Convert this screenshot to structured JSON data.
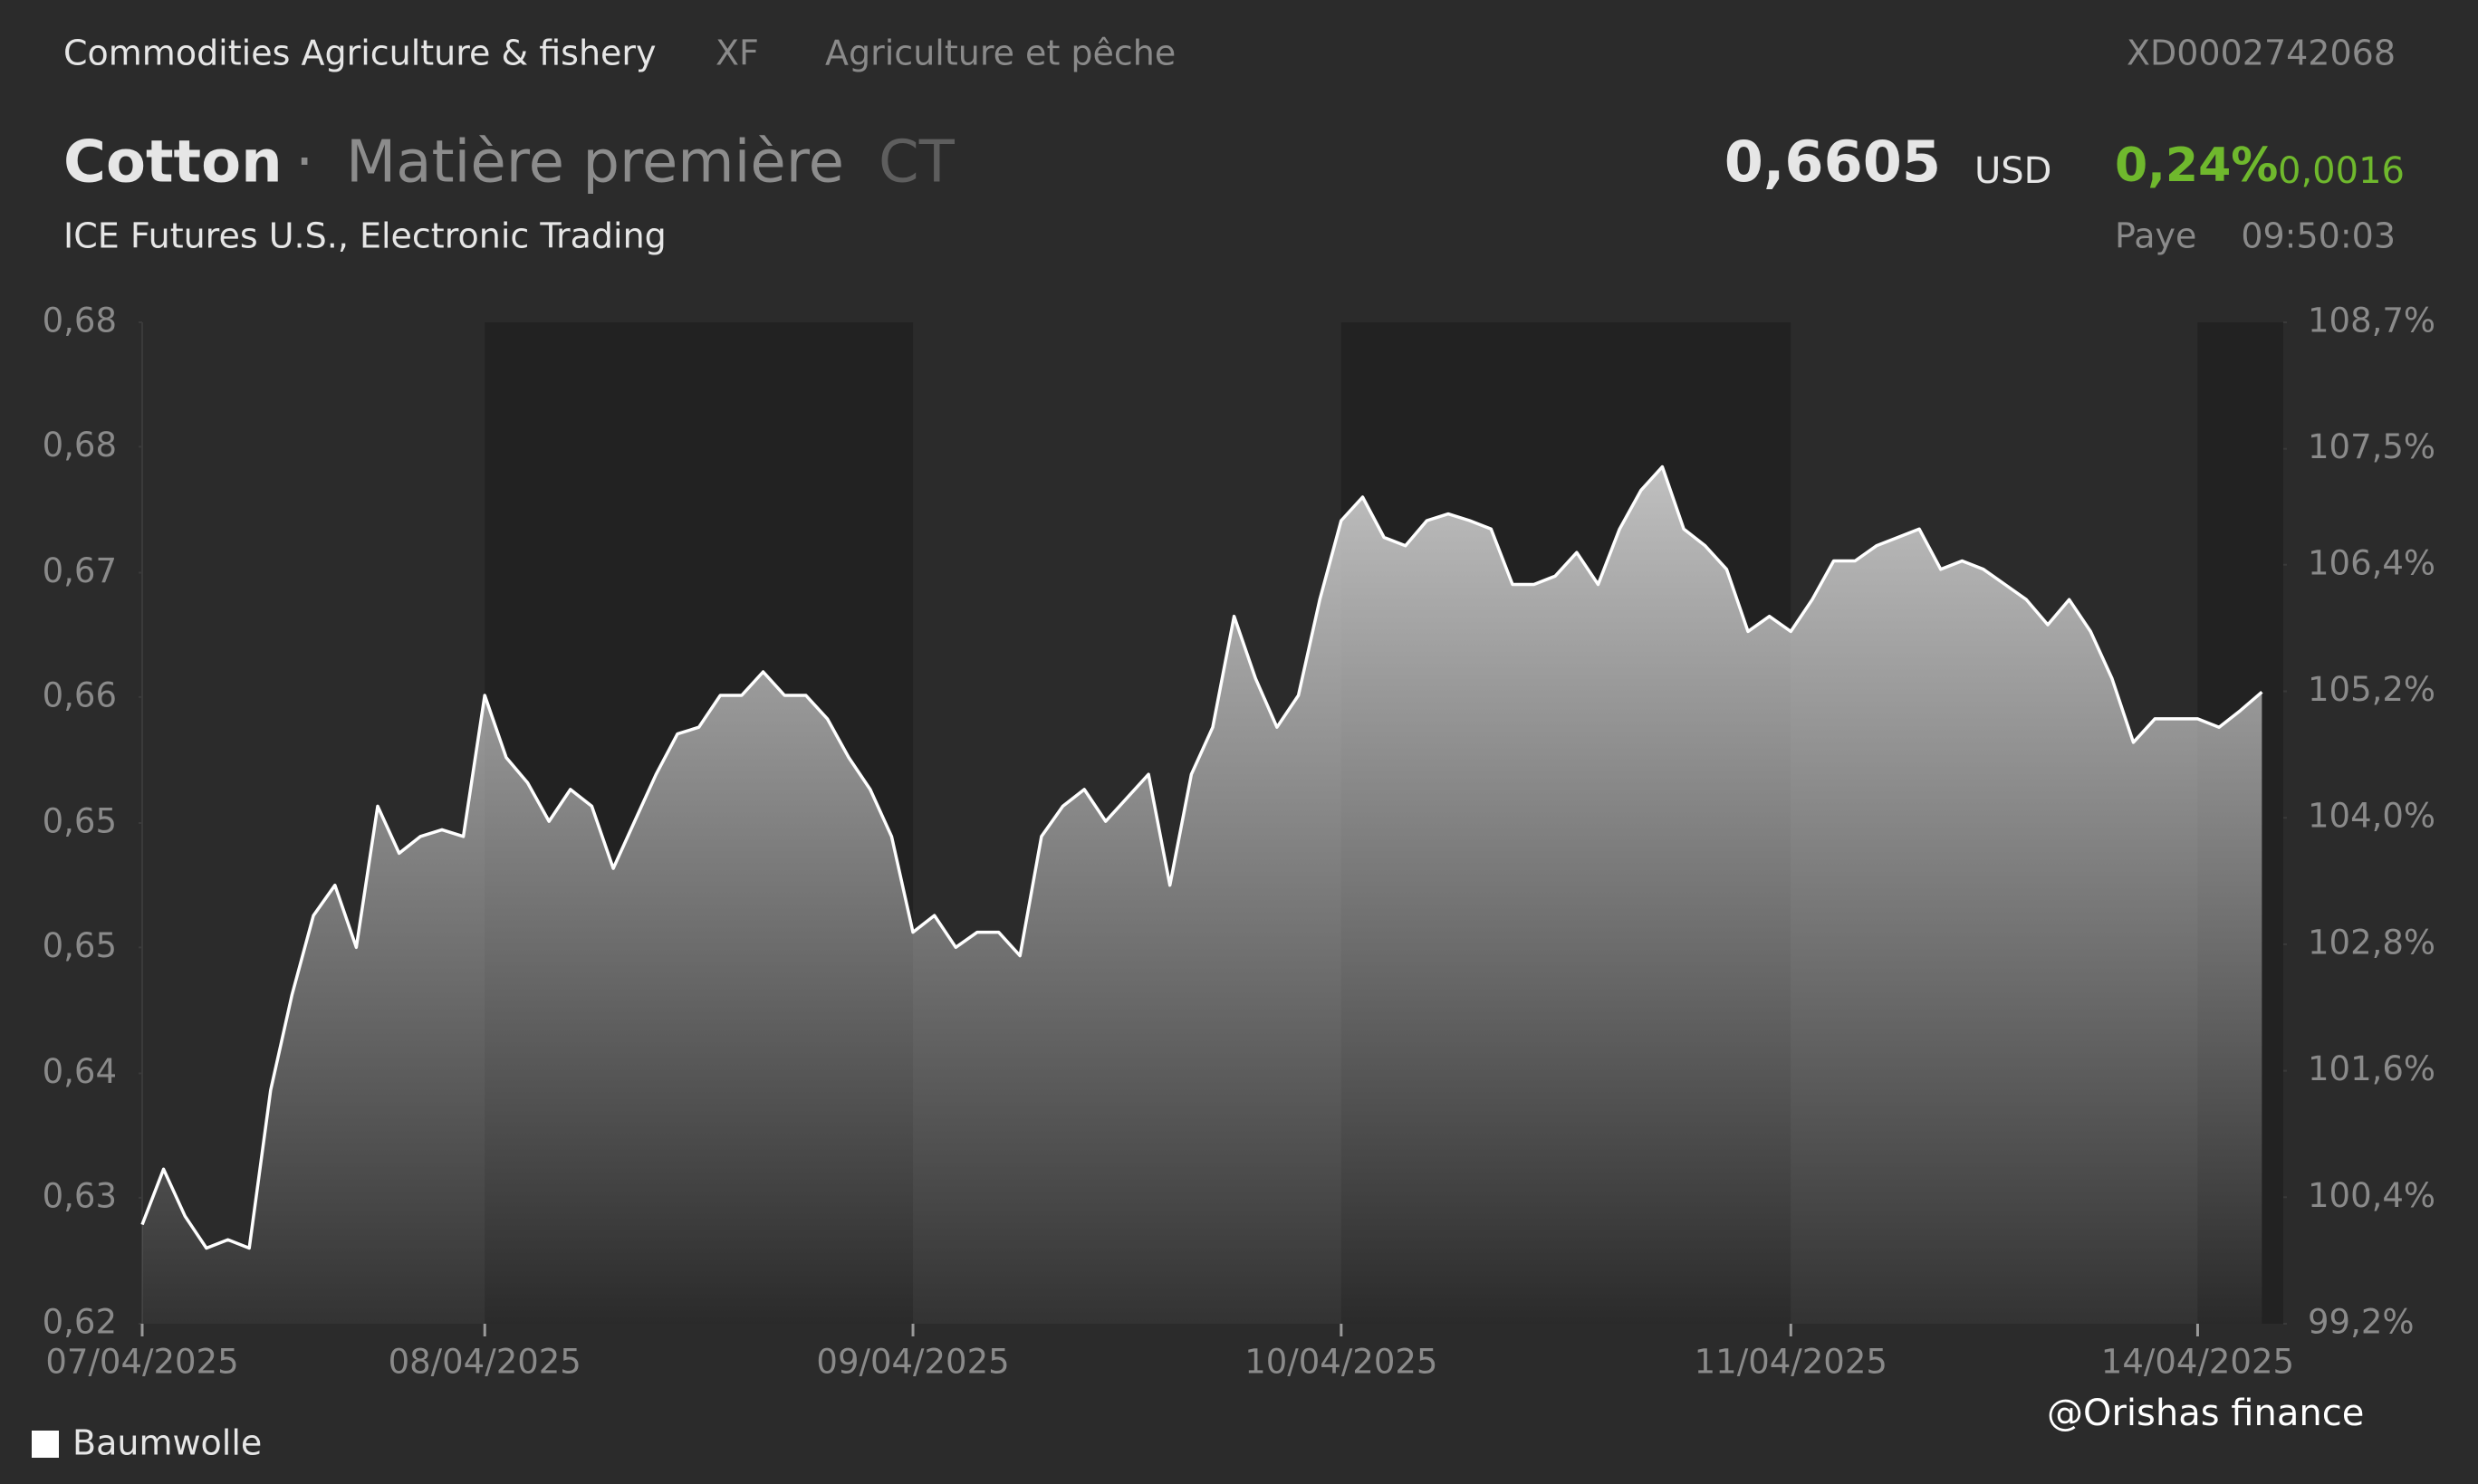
{
  "header": {
    "category": "Commodities Agriculture & fishery",
    "code": "XF",
    "category_fr": "Agriculture et pêche",
    "isin": "XD0002742068",
    "name": "Cotton",
    "separator": "·",
    "type": "Matière première",
    "symbol": "CT",
    "price": "0,6605",
    "currency": "USD",
    "change_pct": "0,24%",
    "change_abs": "0,0016",
    "exchange": "ICE Futures U.S., Electronic Trading",
    "market": "Paye",
    "time": "09:50:03"
  },
  "watermark": "@Orishas finance",
  "chart_data": {
    "type": "line",
    "categories": [
      "07/04/2025",
      null,
      null,
      null,
      null,
      null,
      null,
      null,
      null,
      null,
      null,
      null,
      null,
      null,
      null,
      null,
      "08/04/2025",
      null,
      null,
      null,
      null,
      null,
      null,
      null,
      null,
      null,
      null,
      null,
      null,
      null,
      null,
      null,
      null,
      null,
      null,
      null,
      "09/04/2025",
      null,
      null,
      null,
      null,
      null,
      null,
      null,
      null,
      null,
      null,
      null,
      null,
      null,
      null,
      null,
      null,
      null,
      null,
      null,
      "10/04/2025",
      null,
      null,
      null,
      null,
      null,
      null,
      null,
      null,
      null,
      null,
      null,
      null,
      null,
      null,
      null,
      null,
      null,
      null,
      null,
      null,
      "11/04/2025",
      null,
      null,
      null,
      null,
      null,
      null,
      null,
      null,
      null,
      null,
      null,
      null,
      null,
      null,
      null,
      null,
      null,
      null,
      "14/04/2025",
      null,
      null,
      null
    ],
    "series": [
      {
        "name": "Baumwolle",
        "color": "#ffffff",
        "values": [
          0.6288,
          0.6321,
          0.6293,
          0.6274,
          0.6279,
          0.6274,
          0.6368,
          0.6425,
          0.6472,
          0.649,
          0.6453,
          0.6537,
          0.6509,
          0.6519,
          0.6523,
          0.6519,
          0.6603,
          0.6566,
          0.6551,
          0.6528,
          0.6547,
          0.6537,
          0.65,
          0.6528,
          0.6556,
          0.658,
          0.6584,
          0.6603,
          0.6603,
          0.6617,
          0.6603,
          0.6603,
          0.6589,
          0.6566,
          0.6547,
          0.6519,
          0.6462,
          0.6472,
          0.6453,
          0.6462,
          0.6462,
          0.6448,
          0.6519,
          0.6537,
          0.6547,
          0.6528,
          0.6542,
          0.6556,
          0.649,
          0.6556,
          0.6584,
          0.665,
          0.6613,
          0.6584,
          0.6603,
          0.666,
          0.6707,
          0.6721,
          0.6697,
          0.6692,
          0.6707,
          0.6711,
          0.6707,
          0.6702,
          0.6669,
          0.6669,
          0.6674,
          0.6688,
          0.6669,
          0.6702,
          0.6725,
          0.6739,
          0.6702,
          0.6692,
          0.6678,
          0.6641,
          0.665,
          0.6641,
          0.666,
          0.6683,
          0.6683,
          0.6692,
          0.6697,
          0.6702,
          0.6678,
          0.6683,
          0.6678,
          0.6669,
          0.666,
          0.6645,
          0.666,
          0.6641,
          0.6613,
          0.6575,
          0.6589,
          0.6589,
          0.6589,
          0.6584,
          0.6594,
          0.6605
        ]
      }
    ],
    "ylim": [
      0.6229,
      0.6825
    ],
    "yticks": [
      {
        "value": 0.6229,
        "label": "0,62"
      },
      {
        "value": 0.6304,
        "label": "0,63"
      },
      {
        "value": 0.6378,
        "label": "0,64"
      },
      {
        "value": 0.6453,
        "label": "0,65"
      },
      {
        "value": 0.6527,
        "label": "0,65"
      },
      {
        "value": 0.6602,
        "label": "0,66"
      },
      {
        "value": 0.6676,
        "label": "0,67"
      },
      {
        "value": 0.6751,
        "label": "0,68"
      },
      {
        "value": 0.6825,
        "label": "0,68"
      }
    ],
    "y2lim": [
      99.2,
      108.7
    ],
    "y2ticks": [
      {
        "value": 99.2,
        "label": "99,2%"
      },
      {
        "value": 100.4,
        "label": "100,4%"
      },
      {
        "value": 101.6,
        "label": "101,6%"
      },
      {
        "value": 102.8,
        "label": "102,8%"
      },
      {
        "value": 104.0,
        "label": "104,0%"
      },
      {
        "value": 105.2,
        "label": "105,2%"
      },
      {
        "value": 106.4,
        "label": "106,4%"
      },
      {
        "value": 107.5,
        "label": "107,5%"
      },
      {
        "value": 108.7,
        "label": "108,7%"
      }
    ],
    "grid": false,
    "legend": "bottom-left"
  }
}
